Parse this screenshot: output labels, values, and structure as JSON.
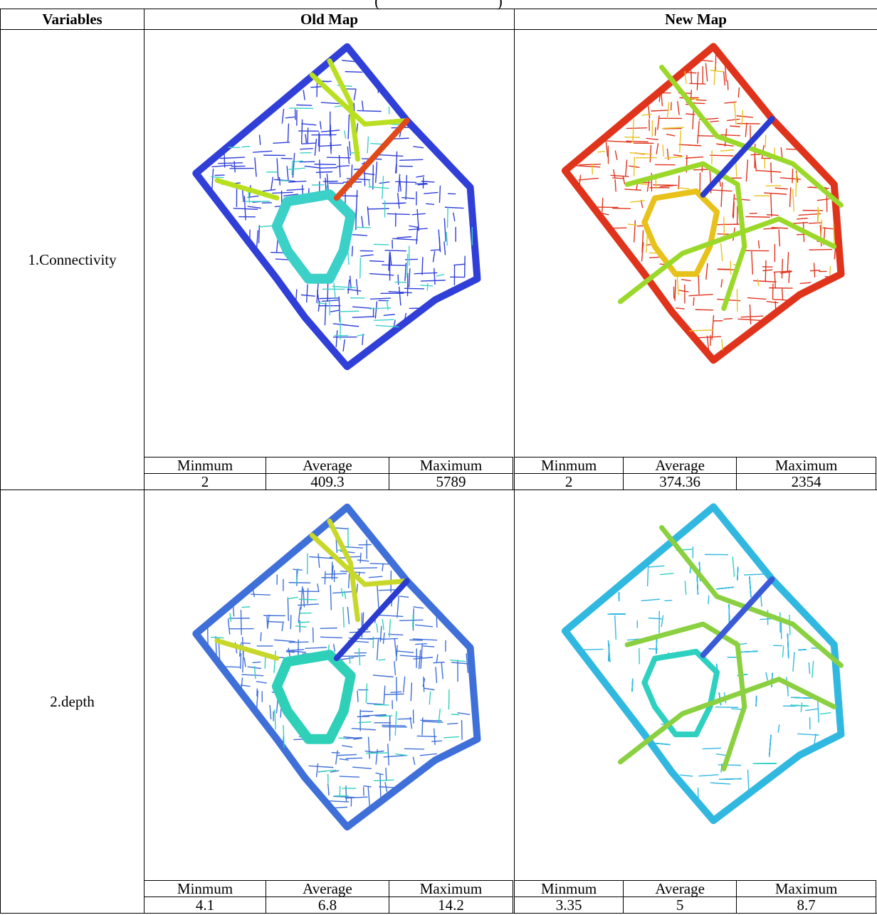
{
  "caption_fragment": "(                              )",
  "headers": {
    "variables": "Variables",
    "old_map": "Old Map",
    "new_map": "New Map"
  },
  "stat_labels": {
    "min": "Minmum",
    "avg": "Average",
    "max": "Maximum"
  },
  "rows": [
    {
      "label": "1.Connectivity",
      "old": {
        "min": "2",
        "avg": "409.3",
        "max": "5789"
      },
      "new": {
        "min": "2",
        "avg": "374.36",
        "max": "2354"
      },
      "old_colors": {
        "base": "#2f3fd8",
        "accent": "#3bd0c8",
        "highlight": "#e04a1a",
        "line": "#b8e020"
      },
      "new_colors": {
        "base": "#e0331c",
        "accent": "#e8c21a",
        "highlight": "#2a3bd0",
        "line": "#9bd82a"
      }
    },
    {
      "label": "2.depth",
      "old": {
        "min": "4.1",
        "avg": "6.8",
        "max": "14.2"
      },
      "new": {
        "min": "3.35",
        "avg": "5",
        "max": "8.7"
      },
      "old_colors": {
        "base": "#3f6fd8",
        "accent": "#2ed0b8",
        "highlight": "#2a3bd0",
        "line": "#c8d82a"
      },
      "new_colors": {
        "base": "#31b8e0",
        "accent": "#2ed0c0",
        "highlight": "#3a5ad8",
        "line": "#8ad040"
      }
    }
  ]
}
